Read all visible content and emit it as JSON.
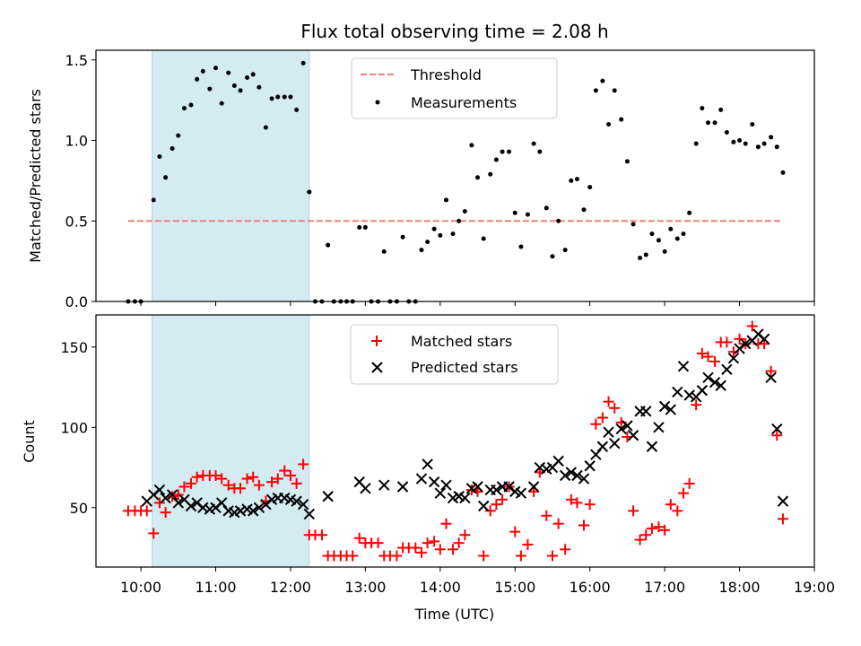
{
  "chart_data": [
    {
      "type": "scatter",
      "title": "Flux total observing time = 2.08 h",
      "xlabel": "",
      "ylabel": "Matched/Predicted stars",
      "xlim": [
        9.4,
        19.0
      ],
      "ylim": [
        0,
        1.56
      ],
      "xticks": [
        "10:00",
        "11:00",
        "12:00",
        "13:00",
        "14:00",
        "15:00",
        "16:00",
        "17:00",
        "18:00",
        "19:00"
      ],
      "yticks": [
        "0.0",
        "0.5",
        "1.0",
        "1.5"
      ],
      "shaded_span": [
        10.15,
        12.25
      ],
      "shaded_color": "#d3ebf1",
      "legend": "top-center",
      "series": [
        {
          "name": "Threshold",
          "kind": "dashed-line",
          "color": "#f08080",
          "x": [
            9.83,
            18.58
          ],
          "y": [
            0.5,
            0.5
          ]
        },
        {
          "name": "Measurements",
          "kind": "dot",
          "color": "#000000",
          "x": [
            9.83,
            9.92,
            10.0,
            10.17,
            10.25,
            10.33,
            10.42,
            10.5,
            10.58,
            10.67,
            10.75,
            10.83,
            10.92,
            11.0,
            11.08,
            11.17,
            11.25,
            11.33,
            11.42,
            11.5,
            11.58,
            11.67,
            11.75,
            11.83,
            11.92,
            12.0,
            12.08,
            12.17,
            12.25,
            12.33,
            12.42,
            12.5,
            12.58,
            12.67,
            12.75,
            12.83,
            12.92,
            13.0,
            13.08,
            13.17,
            13.25,
            13.33,
            13.42,
            13.5,
            13.58,
            13.67,
            13.75,
            13.83,
            13.92,
            14.0,
            14.08,
            14.17,
            14.25,
            14.33,
            14.42,
            14.5,
            14.58,
            14.67,
            14.75,
            14.83,
            14.92,
            15.0,
            15.08,
            15.17,
            15.25,
            15.33,
            15.42,
            15.5,
            15.58,
            15.67,
            15.75,
            15.83,
            15.92,
            16.0,
            16.08,
            16.17,
            16.25,
            16.33,
            16.42,
            16.5,
            16.58,
            16.67,
            16.75,
            16.83,
            16.92,
            17.0,
            17.08,
            17.17,
            17.25,
            17.33,
            17.42,
            17.5,
            17.58,
            17.67,
            17.75,
            17.83,
            17.92,
            18.0,
            18.08,
            18.17,
            18.25,
            18.33,
            18.42,
            18.5,
            18.58
          ],
          "y": [
            0.0,
            0.0,
            0.0,
            0.63,
            0.9,
            0.77,
            0.95,
            1.03,
            1.2,
            1.22,
            1.38,
            1.43,
            1.32,
            1.45,
            1.23,
            1.42,
            1.34,
            1.31,
            1.39,
            1.41,
            1.33,
            1.08,
            1.26,
            1.27,
            1.27,
            1.27,
            1.19,
            1.48,
            0.68,
            0.0,
            0.0,
            0.35,
            0.0,
            0.0,
            0.0,
            0.0,
            0.46,
            0.46,
            0.0,
            0.0,
            0.31,
            0.0,
            0.0,
            0.4,
            0.0,
            0.0,
            0.32,
            0.37,
            0.45,
            0.41,
            0.63,
            0.42,
            0.5,
            0.56,
            0.97,
            0.77,
            0.39,
            0.79,
            0.88,
            0.93,
            0.93,
            0.55,
            0.34,
            0.54,
            0.98,
            0.93,
            0.58,
            0.28,
            0.5,
            0.32,
            0.75,
            0.76,
            0.57,
            0.71,
            1.31,
            1.37,
            1.1,
            1.31,
            1.13,
            0.87,
            0.48,
            0.27,
            0.29,
            0.42,
            0.38,
            0.31,
            0.45,
            0.39,
            0.42,
            0.55,
            0.98,
            1.2,
            1.11,
            1.11,
            1.19,
            1.05,
            0.99,
            1.0,
            0.98,
            1.1,
            0.96,
            0.98,
            1.02,
            0.96,
            0.8
          ]
        }
      ]
    },
    {
      "type": "scatter",
      "title": "",
      "xlabel": "Time (UTC)",
      "ylabel": "Count",
      "xlim": [
        9.4,
        19.0
      ],
      "ylim": [
        13,
        170
      ],
      "xticks": [
        "10:00",
        "11:00",
        "12:00",
        "13:00",
        "14:00",
        "15:00",
        "16:00",
        "17:00",
        "18:00",
        "19:00"
      ],
      "yticks": [
        "50",
        "100",
        "150"
      ],
      "shaded_span": [
        10.15,
        12.25
      ],
      "shaded_color": "#d3ebf1",
      "legend": "top-center",
      "series": [
        {
          "name": "Matched stars",
          "kind": "plus",
          "color": "#ff0000",
          "x": [
            9.83,
            9.92,
            10.0,
            10.08,
            10.17,
            10.25,
            10.33,
            10.42,
            10.5,
            10.58,
            10.67,
            10.75,
            10.83,
            10.92,
            11.0,
            11.08,
            11.17,
            11.25,
            11.33,
            11.42,
            11.5,
            11.58,
            11.67,
            11.75,
            11.83,
            11.92,
            12.0,
            12.08,
            12.17,
            12.25,
            12.33,
            12.42,
            12.5,
            12.58,
            12.67,
            12.75,
            12.83,
            12.92,
            13.0,
            13.08,
            13.17,
            13.25,
            13.33,
            13.42,
            13.5,
            13.58,
            13.67,
            13.75,
            13.83,
            13.92,
            14.0,
            14.08,
            14.17,
            14.25,
            14.33,
            14.42,
            14.5,
            14.58,
            14.67,
            14.75,
            14.83,
            14.92,
            15.0,
            15.08,
            15.17,
            15.25,
            15.33,
            15.42,
            15.5,
            15.58,
            15.67,
            15.75,
            15.83,
            15.92,
            16.0,
            16.08,
            16.17,
            16.25,
            16.33,
            16.42,
            16.5,
            16.58,
            16.67,
            16.75,
            16.83,
            16.92,
            17.0,
            17.08,
            17.17,
            17.25,
            17.33,
            17.42,
            17.5,
            17.58,
            17.67,
            17.75,
            17.83,
            17.92,
            18.0,
            18.08,
            18.17,
            18.25,
            18.33,
            18.42,
            18.5,
            18.58
          ],
          "y": [
            48,
            48,
            48,
            48,
            34,
            53,
            47,
            57,
            58,
            63,
            65,
            69,
            70,
            70,
            70,
            68,
            64,
            62,
            62,
            68,
            69,
            64,
            54,
            66,
            68,
            73,
            70,
            65,
            77,
            33,
            33,
            33,
            20,
            20,
            20,
            20,
            20,
            31,
            28,
            28,
            28,
            20,
            20,
            20,
            25,
            25,
            25,
            22,
            28,
            29,
            24,
            40,
            24,
            28,
            33,
            61,
            60,
            20,
            48,
            52,
            55,
            63,
            35,
            20,
            27,
            60,
            72,
            45,
            20,
            40,
            24,
            55,
            53,
            39,
            52,
            102,
            106,
            116,
            112,
            103,
            94,
            48,
            30,
            33,
            37,
            38,
            36,
            52,
            48,
            59,
            65,
            114,
            146,
            144,
            141,
            153,
            153,
            147,
            155,
            152,
            163,
            152,
            152,
            135,
            95,
            43
          ]
        },
        {
          "name": "Predicted stars",
          "kind": "x",
          "color": "#000000",
          "x": [
            10.08,
            10.17,
            10.25,
            10.33,
            10.42,
            10.5,
            10.58,
            10.67,
            10.75,
            10.83,
            10.92,
            11.0,
            11.08,
            11.17,
            11.25,
            11.33,
            11.42,
            11.5,
            11.58,
            11.67,
            11.75,
            11.83,
            11.92,
            12.0,
            12.08,
            12.17,
            12.25,
            12.5,
            12.92,
            13.0,
            13.25,
            13.5,
            13.75,
            13.83,
            13.92,
            14.0,
            14.08,
            14.17,
            14.25,
            14.33,
            14.42,
            14.5,
            14.58,
            14.67,
            14.75,
            14.83,
            14.92,
            15.0,
            15.08,
            15.25,
            15.33,
            15.42,
            15.5,
            15.58,
            15.67,
            15.75,
            15.83,
            15.92,
            16.0,
            16.08,
            16.17,
            16.25,
            16.33,
            16.42,
            16.5,
            16.58,
            16.67,
            16.75,
            16.83,
            16.92,
            17.0,
            17.08,
            17.17,
            17.25,
            17.33,
            17.42,
            17.5,
            17.58,
            17.67,
            17.75,
            17.83,
            17.92,
            18.0,
            18.08,
            18.17,
            18.25,
            18.33,
            18.42,
            18.5,
            18.58
          ],
          "y": [
            54,
            58,
            61,
            56,
            58,
            53,
            55,
            51,
            53,
            50,
            49,
            50,
            53,
            48,
            47,
            48,
            49,
            48,
            50,
            52,
            55,
            56,
            56,
            55,
            54,
            52,
            46,
            57,
            66,
            62,
            64,
            63,
            68,
            77,
            66,
            59,
            64,
            56,
            57,
            56,
            62,
            63,
            51,
            61,
            61,
            63,
            63,
            60,
            59,
            63,
            75,
            74,
            75,
            79,
            70,
            72,
            70,
            68,
            76,
            83,
            88,
            97,
            90,
            99,
            101,
            95,
            110,
            110,
            88,
            100,
            113,
            111,
            122,
            138,
            120,
            119,
            123,
            131,
            128,
            126,
            136,
            143,
            149,
            152,
            154,
            158,
            155,
            131,
            99,
            54
          ]
        }
      ]
    }
  ]
}
